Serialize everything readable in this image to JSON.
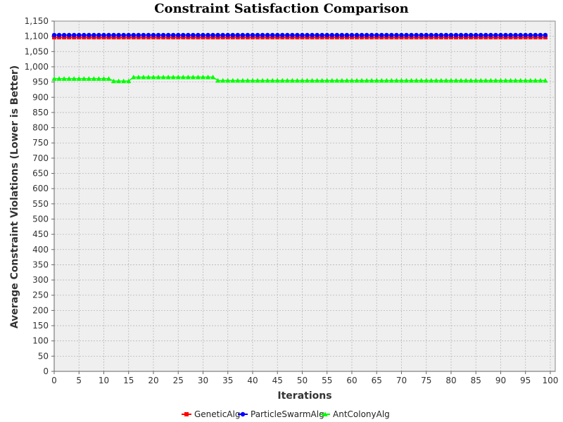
{
  "chart_data": {
    "type": "line",
    "title": "Constraint Satisfaction Comparison",
    "xlabel": "Iterations",
    "ylabel": "Average Constraint Violations (Lower is Better)",
    "xlim": [
      0,
      101
    ],
    "ylim": [
      0,
      1150
    ],
    "x_ticks": [
      0,
      5,
      10,
      15,
      20,
      25,
      30,
      35,
      40,
      45,
      50,
      55,
      60,
      65,
      70,
      75,
      80,
      85,
      90,
      95,
      100
    ],
    "y_ticks": [
      0,
      50,
      100,
      150,
      200,
      250,
      300,
      350,
      400,
      450,
      500,
      550,
      600,
      650,
      700,
      750,
      800,
      850,
      900,
      950,
      1000,
      1050,
      1100,
      1150
    ],
    "y_tick_labels": [
      "0",
      "50",
      "100",
      "150",
      "200",
      "250",
      "300",
      "350",
      "400",
      "450",
      "500",
      "550",
      "600",
      "650",
      "700",
      "750",
      "800",
      "850",
      "900",
      "950",
      "1,000",
      "1,050",
      "1,100",
      "1,150"
    ],
    "grid": true,
    "legend_position": "bottom",
    "series": [
      {
        "name": "GeneticAlg",
        "color": "#ff0000",
        "marker": "square",
        "x_start": 0,
        "x_end": 99,
        "segments": [
          {
            "from": 0,
            "to": 99,
            "value": 1097
          }
        ]
      },
      {
        "name": "ParticleSwarmAlg",
        "color": "#0000ff",
        "marker": "circle",
        "x_start": 0,
        "x_end": 99,
        "segments": [
          {
            "from": 0,
            "to": 99,
            "value": 1104
          }
        ]
      },
      {
        "name": "AntColonyAlg",
        "color": "#00ff00",
        "marker": "triangle",
        "x_start": 0,
        "x_end": 99,
        "segments": [
          {
            "from": 0,
            "to": 11,
            "value": 961
          },
          {
            "from": 12,
            "to": 15,
            "value": 953
          },
          {
            "from": 16,
            "to": 32,
            "value": 966
          },
          {
            "from": 33,
            "to": 99,
            "value": 955
          }
        ]
      }
    ]
  }
}
